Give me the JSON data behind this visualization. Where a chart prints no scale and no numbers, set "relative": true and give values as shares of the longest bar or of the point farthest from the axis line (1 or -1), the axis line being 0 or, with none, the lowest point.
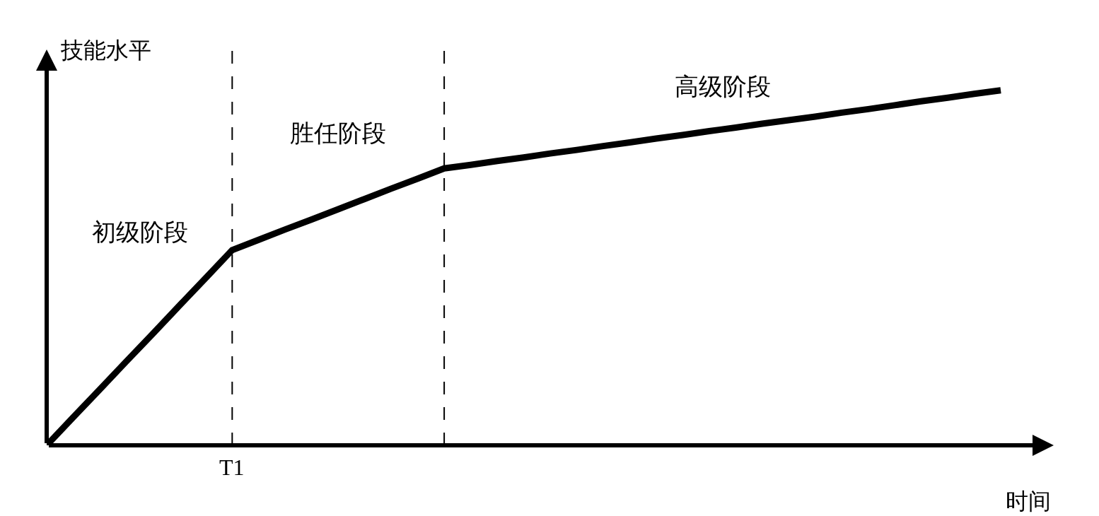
{
  "chart_data": {
    "type": "line",
    "relative": true,
    "xlabel": "时间",
    "ylabel": "技能水平",
    "categories": [
      null,
      null,
      null,
      null,
      null,
      null,
      null,
      null,
      null,
      null,
      null,
      null,
      null,
      null,
      null,
      null,
      null,
      null,
      null,
      null,
      null,
      null,
      null,
      null,
      null,
      null,
      null,
      null,
      null,
      null,
      null,
      null,
      null,
      null,
      null,
      null,
      null,
      null,
      null
    ],
    "series": [
      {
        "color": "#000000",
        "values": [
          0,
          0.079,
          0.157,
          0.236,
          0.314,
          0.393,
          0.471,
          0.55,
          0.579,
          0.608,
          0.636,
          0.665,
          0.694,
          0.723,
          0.751,
          0.78,
          0.79,
          0.801,
          0.811,
          0.822,
          0.832,
          0.843,
          0.853,
          0.864,
          0.874,
          0.885,
          0.895,
          0.906,
          0.916,
          0.926,
          0.937,
          0.947,
          0.958,
          0.969,
          0.979,
          0.99,
          1.0,
          null,
          null
        ]
      }
    ],
    "annotations": [
      "T1",
      "初级阶段",
      "胜任阶段",
      "高级阶段"
    ],
    "marker": "none",
    "line_style": "solid"
  }
}
